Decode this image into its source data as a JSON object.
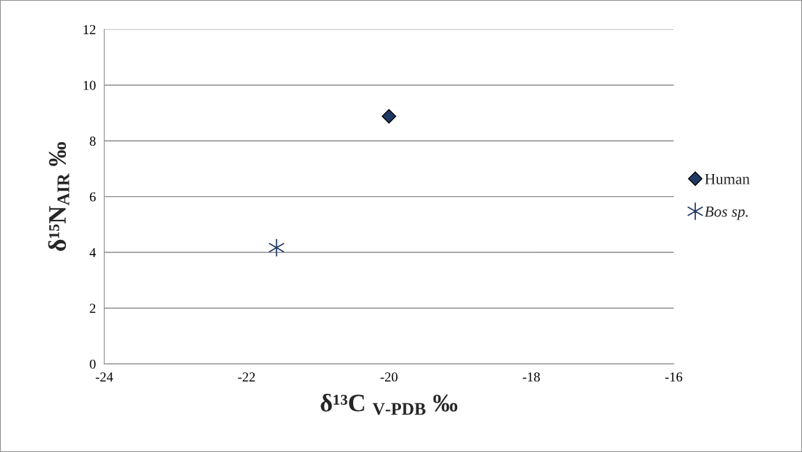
{
  "chart_data": {
    "type": "scatter",
    "xlabel": "δ¹³C $_{V-PDB}$ ‰",
    "ylabel": "δ¹⁵N$_{AIR}$ ‰",
    "series": [
      {
        "name": "Human",
        "color": "#1f3864",
        "marker": "diamond",
        "x": [
          -20.0
        ],
        "values": [
          8.88
        ]
      },
      {
        "name": "Bos sp.",
        "color": "#1f3864",
        "marker": "cross",
        "x": [
          -21.58
        ],
        "values": [
          4.17
        ]
      }
    ],
    "xlim": [
      -24,
      -16
    ],
    "xticks": [
      -24,
      -22,
      -20,
      -18,
      -16
    ],
    "ylim": [
      0,
      12
    ],
    "yticks": [
      0,
      2,
      4,
      6,
      8,
      10,
      12
    ],
    "grid": "y",
    "legend": "right"
  }
}
